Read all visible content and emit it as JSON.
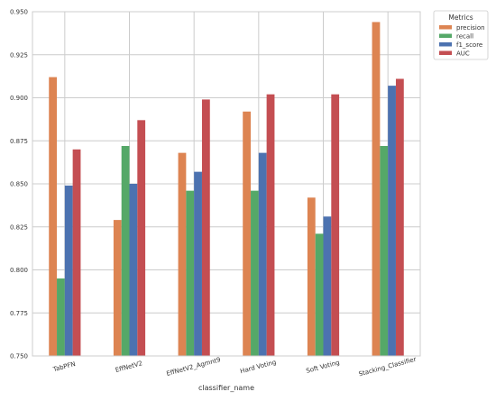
{
  "chart_data": {
    "type": "bar",
    "xlabel": "classifier_name",
    "ylabel": "",
    "ylim": [
      0.75,
      0.95
    ],
    "yticks": [
      "0.750",
      "0.775",
      "0.800",
      "0.825",
      "0.850",
      "0.875",
      "0.900",
      "0.925",
      "0.950"
    ],
    "grid": true,
    "legend_title": "Metrics",
    "legend_position": "outside top-right",
    "categories": [
      "TabPFN",
      "EffNetV2",
      "EffNetV2_Agmnt9",
      "Hard Voting",
      "Soft Voting",
      "Stacking_Classifier"
    ],
    "series": [
      {
        "name": "precision",
        "color": "#dd8452",
        "values": [
          0.912,
          0.829,
          0.868,
          0.892,
          0.842,
          0.944
        ]
      },
      {
        "name": "recall",
        "color": "#55a868",
        "values": [
          0.795,
          0.872,
          0.846,
          0.846,
          0.821,
          0.872
        ]
      },
      {
        "name": "f1_score",
        "color": "#4c72b0",
        "values": [
          0.849,
          0.85,
          0.857,
          0.868,
          0.831,
          0.907
        ]
      },
      {
        "name": "AUC",
        "color": "#c44e52",
        "values": [
          0.87,
          0.887,
          0.899,
          0.902,
          0.902,
          0.911
        ]
      }
    ]
  }
}
